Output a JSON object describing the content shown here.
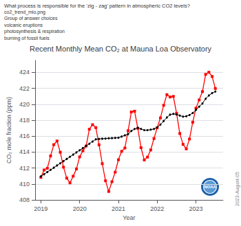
{
  "chart_data": {
    "type": "line",
    "title": "Recent Monthly Mean CO₂ at Mauna Loa Observatory",
    "subtitle": [
      "What process is responsible for the ‘zig - zag’ pattern in atmospheric CO2 levels?",
      "co2_trend_mlo.png",
      "Group of answer choices",
      "volcanic eruptions",
      "photosynthesis & respiration",
      "burning of fossil fuels"
    ],
    "annotations": [
      "NOAA",
      "2023-August-05"
    ],
    "xlabel": "Year",
    "ylabel": "CO₂ mole fraction (ppm)",
    "xlim": [
      2018.85,
      2023.7
    ],
    "xticks": [
      2019,
      2020,
      2021,
      2022,
      2023
    ],
    "ylim": [
      408,
      425.5
    ],
    "yticks": [
      408,
      410,
      412,
      414,
      416,
      418,
      420,
      422,
      424
    ],
    "grid": true,
    "x": [
      2019.0,
      2019.083,
      2019.167,
      2019.25,
      2019.333,
      2019.417,
      2019.5,
      2019.583,
      2019.667,
      2019.75,
      2019.833,
      2019.917,
      2020.0,
      2020.083,
      2020.167,
      2020.25,
      2020.333,
      2020.417,
      2020.5,
      2020.583,
      2020.667,
      2020.75,
      2020.833,
      2020.917,
      2021.0,
      2021.083,
      2021.167,
      2021.25,
      2021.333,
      2021.417,
      2021.5,
      2021.583,
      2021.667,
      2021.75,
      2021.833,
      2021.917,
      2022.0,
      2022.083,
      2022.167,
      2022.25,
      2022.333,
      2022.417,
      2022.5,
      2022.583,
      2022.667,
      2022.75,
      2022.833,
      2022.917,
      2023.0,
      2023.083,
      2023.167,
      2023.25,
      2023.333,
      2023.417,
      2023.5
    ],
    "series": [
      {
        "color": "red",
        "marker": "square",
        "values": [
          410.83,
          411.75,
          411.97,
          413.52,
          414.93,
          415.39,
          413.98,
          412.11,
          410.73,
          410.14,
          410.98,
          411.89,
          413.4,
          414.16,
          414.76,
          416.87,
          417.44,
          417.07,
          414.92,
          412.55,
          410.4,
          409.06,
          410.28,
          411.48,
          413.04,
          414.09,
          414.51,
          416.68,
          419.04,
          419.13,
          416.98,
          414.55,
          413.01,
          413.37,
          414.27,
          415.7,
          417.05,
          418.29,
          419.87,
          421.21,
          420.91,
          420.99,
          418.87,
          416.33,
          414.97,
          414.4,
          415.64,
          417.75,
          419.52,
          420.54,
          421.59,
          423.75,
          424.02,
          423.49,
          421.98
        ]
      },
      {
        "color": "black",
        "marker": "circle",
        "error": 0.13,
        "values": [
          410.95,
          411.22,
          411.5,
          411.77,
          412.04,
          412.32,
          412.59,
          412.86,
          413.14,
          413.41,
          413.68,
          413.96,
          414.23,
          414.5,
          414.78,
          415.05,
          415.32,
          415.6,
          415.65,
          415.68,
          415.7,
          415.73,
          415.75,
          415.78,
          415.8,
          415.95,
          416.1,
          416.25,
          416.65,
          416.9,
          417.05,
          416.9,
          416.75,
          416.75,
          416.82,
          416.9,
          417.1,
          417.45,
          417.9,
          418.35,
          418.7,
          418.8,
          418.72,
          418.58,
          418.45,
          418.5,
          418.65,
          418.9,
          419.3,
          419.7,
          420.1,
          420.7,
          421.1,
          421.4,
          421.6
        ]
      }
    ]
  }
}
